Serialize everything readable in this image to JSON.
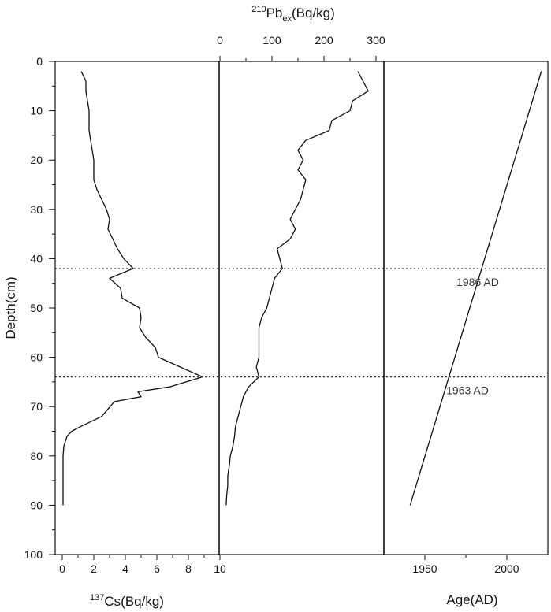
{
  "chart_data": {
    "type": "line",
    "shared_y": {
      "label": "Depth(cm)",
      "ylim": [
        0,
        100
      ],
      "ticks": [
        0,
        10,
        20,
        30,
        40,
        50,
        60,
        70,
        80,
        90,
        100
      ],
      "inverted": true
    },
    "panels": [
      {
        "id": "cs137",
        "xlabel_sup": "137",
        "xlabel": "Cs(Bq/kg)",
        "xlabel_position": "bottom",
        "xlim": [
          0,
          10
        ],
        "xticks": [
          0,
          2,
          4,
          6,
          8,
          10
        ],
        "series": [
          {
            "depth": [
              2,
              4,
              6,
              8,
              10,
              12,
              14,
              16,
              18,
              20,
              22,
              24,
              26,
              28,
              30,
              32,
              34,
              36,
              38,
              40,
              42,
              44,
              46,
              48,
              50,
              52,
              54,
              56,
              58,
              60,
              62,
              64,
              66,
              67,
              68,
              69,
              72,
              74,
              75,
              76,
              77,
              78,
              80,
              84,
              88,
              90
            ],
            "values": [
              1.2,
              1.5,
              1.5,
              1.6,
              1.7,
              1.7,
              1.7,
              1.8,
              1.9,
              2.0,
              2.0,
              2.0,
              2.2,
              2.5,
              2.8,
              3.0,
              2.9,
              3.2,
              3.5,
              3.9,
              4.5,
              3.0,
              3.7,
              3.8,
              4.9,
              5.0,
              4.9,
              5.3,
              5.9,
              6.1,
              7.5,
              8.9,
              6.8,
              4.8,
              5.0,
              3.3,
              2.5,
              1.2,
              0.6,
              0.3,
              0.2,
              0.1,
              0.05,
              0.05,
              0.05,
              0.05
            ]
          }
        ]
      },
      {
        "id": "pb210",
        "xlabel_base": "Pb",
        "xlabel_pre": "210",
        "xlabel_sub": "ex",
        "xlabel_tail": "(Bq/kg)",
        "xlabel_position": "top",
        "xlim": [
          0,
          300
        ],
        "xticks": [
          0,
          100,
          200,
          300
        ],
        "series": [
          {
            "depth": [
              2,
              4,
              5,
              6,
              8,
              10,
              12,
              14,
              16,
              18,
              20,
              22,
              24,
              26,
              28,
              30,
              32,
              34,
              36,
              38,
              40,
              42,
              44,
              46,
              48,
              50,
              52,
              54,
              56,
              58,
              60,
              62,
              64,
              66,
              68,
              70,
              72,
              74,
              76,
              78,
              80,
              82,
              84,
              86,
              88,
              90
            ],
            "values": [
              265,
              275,
              280,
              285,
              255,
              250,
              215,
              210,
              165,
              150,
              160,
              150,
              165,
              160,
              155,
              145,
              135,
              145,
              135,
              110,
              115,
              120,
              105,
              100,
              95,
              90,
              80,
              75,
              75,
              75,
              75,
              70,
              75,
              55,
              45,
              40,
              35,
              30,
              28,
              25,
              20,
              18,
              15,
              15,
              13,
              12
            ]
          }
        ]
      },
      {
        "id": "age",
        "xlabel": "Age(AD)",
        "xlabel_position": "bottom",
        "xlim": [
          1925,
          2025
        ],
        "xticks": [
          1950,
          2000
        ],
        "series": [
          {
            "depth": [
              2,
              90
            ],
            "values": [
              2021,
              1941
            ]
          }
        ]
      }
    ],
    "annotations": [
      {
        "depth": 42,
        "label": "1986 AD"
      },
      {
        "depth": 64,
        "label": "1963 AD"
      }
    ]
  }
}
